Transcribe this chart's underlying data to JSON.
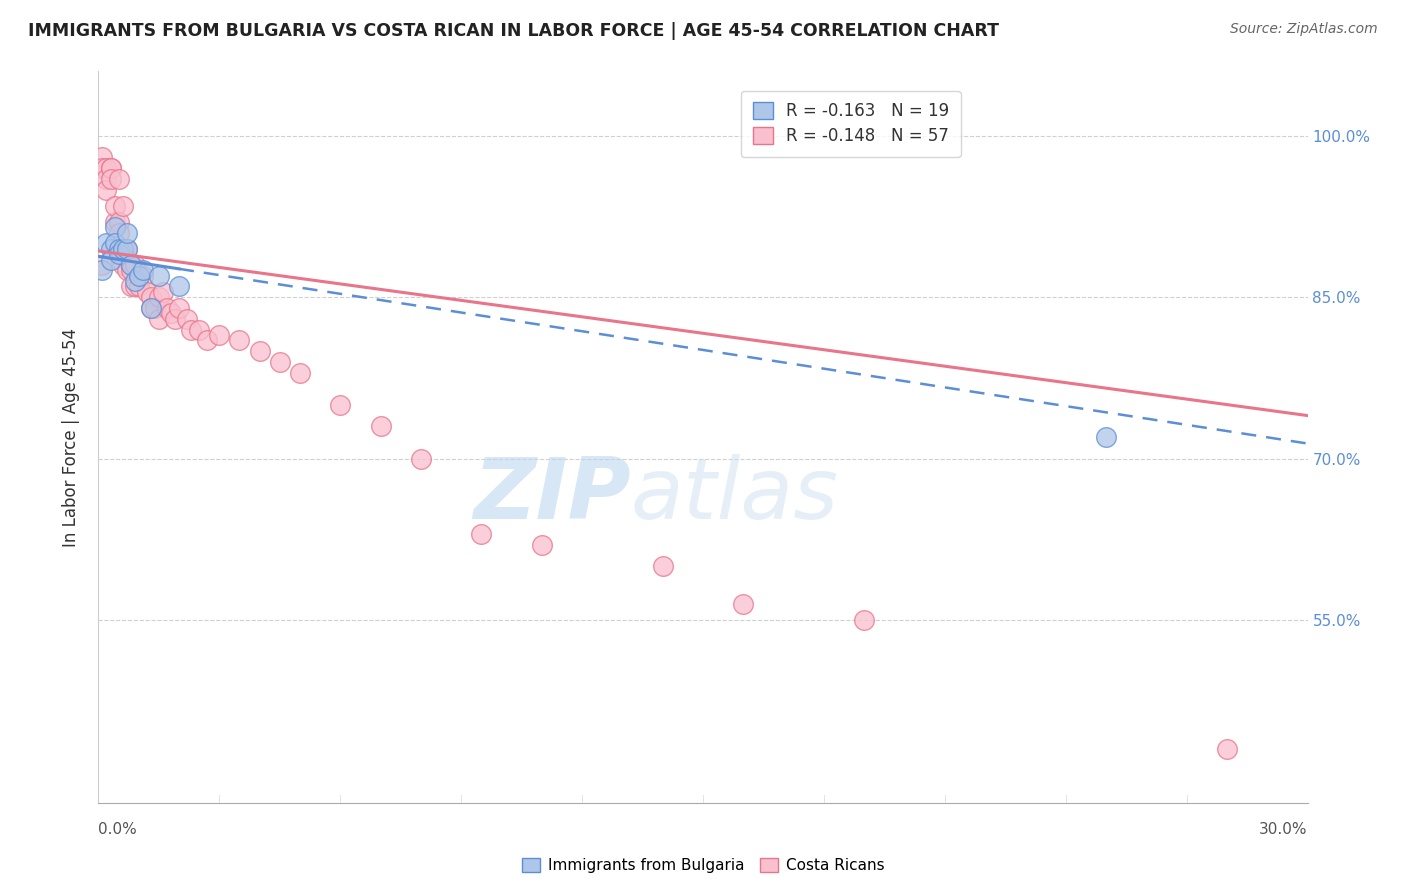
{
  "title": "IMMIGRANTS FROM BULGARIA VS COSTA RICAN IN LABOR FORCE | AGE 45-54 CORRELATION CHART",
  "source": "Source: ZipAtlas.com",
  "ylabel": "In Labor Force | Age 45-54",
  "right_yticks": [
    1.0,
    0.85,
    0.7,
    0.55
  ],
  "right_yticklabels": [
    "100.0%",
    "85.0%",
    "70.0%",
    "55.0%"
  ],
  "xlim": [
    0.0,
    0.3
  ],
  "ylim": [
    0.38,
    1.06
  ],
  "bulgaria_R": -0.163,
  "bulgaria_N": 19,
  "costarica_R": -0.148,
  "costarica_N": 57,
  "bulgaria_color": "#aec6e8",
  "costarica_color": "#f9c0cf",
  "bulgaria_line_color": "#5b8ed6",
  "costarica_line_color": "#e8758a",
  "watermark_zip": "ZIP",
  "watermark_atlas": "atlas",
  "bulgaria_points_x": [
    0.001,
    0.002,
    0.003,
    0.003,
    0.004,
    0.004,
    0.005,
    0.005,
    0.006,
    0.007,
    0.007,
    0.008,
    0.009,
    0.01,
    0.011,
    0.013,
    0.015,
    0.02,
    0.25
  ],
  "bulgaria_points_y": [
    0.875,
    0.9,
    0.895,
    0.885,
    0.915,
    0.9,
    0.895,
    0.89,
    0.895,
    0.895,
    0.91,
    0.88,
    0.865,
    0.87,
    0.875,
    0.84,
    0.87,
    0.86,
    0.72
  ],
  "costarica_points_x": [
    0.001,
    0.001,
    0.001,
    0.002,
    0.002,
    0.002,
    0.003,
    0.003,
    0.003,
    0.004,
    0.004,
    0.005,
    0.005,
    0.005,
    0.006,
    0.006,
    0.006,
    0.007,
    0.007,
    0.007,
    0.008,
    0.008,
    0.008,
    0.009,
    0.009,
    0.01,
    0.01,
    0.011,
    0.012,
    0.013,
    0.013,
    0.014,
    0.015,
    0.015,
    0.016,
    0.017,
    0.018,
    0.019,
    0.02,
    0.022,
    0.023,
    0.025,
    0.027,
    0.03,
    0.035,
    0.04,
    0.045,
    0.05,
    0.06,
    0.07,
    0.08,
    0.095,
    0.11,
    0.14,
    0.16,
    0.19,
    0.28
  ],
  "costarica_points_y": [
    0.88,
    0.98,
    0.97,
    0.97,
    0.96,
    0.95,
    0.97,
    0.97,
    0.96,
    0.92,
    0.935,
    0.96,
    0.92,
    0.91,
    0.935,
    0.89,
    0.88,
    0.895,
    0.885,
    0.875,
    0.88,
    0.875,
    0.86,
    0.88,
    0.86,
    0.87,
    0.86,
    0.87,
    0.855,
    0.85,
    0.84,
    0.84,
    0.85,
    0.83,
    0.855,
    0.84,
    0.835,
    0.83,
    0.84,
    0.83,
    0.82,
    0.82,
    0.81,
    0.815,
    0.81,
    0.8,
    0.79,
    0.78,
    0.75,
    0.73,
    0.7,
    0.63,
    0.62,
    0.6,
    0.565,
    0.55,
    0.43
  ],
  "bulgaria_line_x0": 0.0,
  "bulgaria_line_x_solid_end": 0.02,
  "bulgaria_line_x_dash_end": 0.3,
  "bulgaria_line_y0": 0.888,
  "bulgaria_line_slope": -0.58,
  "costarica_line_x0": 0.0,
  "costarica_line_x_end": 0.3,
  "costarica_line_y0": 0.893,
  "costarica_line_slope": -0.51
}
